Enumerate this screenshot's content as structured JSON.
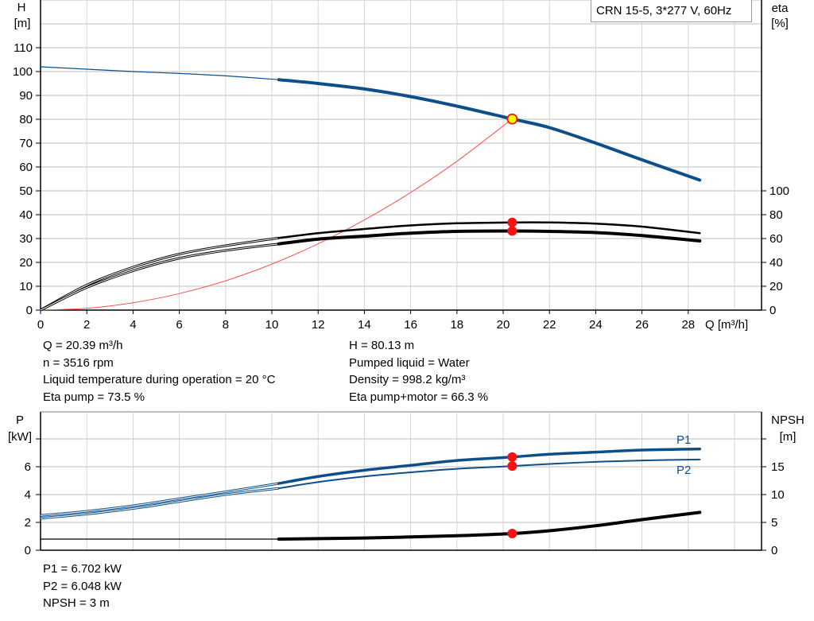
{
  "chart_data": [
    {
      "type": "line",
      "title": "CRN 15-5, 3*277 V, 60Hz",
      "xlabel": "Q [m³/h]",
      "ylabel_left": [
        "H",
        "[m]"
      ],
      "ylabel_right": [
        "eta",
        "[%]"
      ],
      "xlim": [
        0,
        31.2
      ],
      "ylim_left": [
        0,
        130
      ],
      "ylim_right": [
        0,
        260
      ],
      "x_ticks": [
        0,
        2,
        4,
        6,
        8,
        10,
        12,
        14,
        16,
        18,
        20,
        22,
        24,
        26,
        28
      ],
      "y_ticks_left": [
        0,
        10,
        20,
        30,
        40,
        50,
        60,
        70,
        80,
        90,
        100,
        110
      ],
      "y_ticks_right": [
        0,
        20,
        40,
        60,
        80,
        100
      ],
      "grid": true,
      "thick_from_q": 10.3,
      "series": [
        {
          "key": "H",
          "axis": "left",
          "color": "#0d4f8b",
          "x": [
            0,
            2,
            4,
            6,
            8,
            10.3,
            12,
            14,
            16,
            18,
            20.39,
            22,
            24,
            26,
            28.5
          ],
          "y": [
            102,
            101,
            100,
            99.2,
            98.2,
            96.6,
            95,
            92.7,
            89.5,
            85.5,
            80.13,
            76.5,
            70,
            63,
            54.5
          ]
        },
        {
          "key": "system",
          "axis": "left",
          "color": "#ff5050",
          "x": [
            0,
            2,
            4,
            6,
            8,
            10,
            12,
            14,
            16,
            18,
            20.39
          ],
          "y": [
            0,
            0.77,
            3.08,
            6.94,
            12.3,
            19.3,
            27.8,
            37.8,
            49.3,
            62.4,
            80.13
          ]
        },
        {
          "key": "eta_pump",
          "axis": "right",
          "color": "#000000",
          "x": [
            0,
            2,
            4,
            6,
            8,
            10.3,
            12,
            14,
            16,
            18,
            20.39,
            22,
            24,
            26,
            28.5
          ],
          "y": [
            0,
            21,
            36,
            47,
            54,
            60.5,
            64.5,
            68,
            71,
            72.8,
            73.5,
            73.5,
            72.5,
            70,
            64.5
          ]
        },
        {
          "key": "eta_pump_motor",
          "axis": "right",
          "color": "#000000",
          "x": [
            0,
            2,
            4,
            6,
            8,
            10.3,
            12,
            14,
            16,
            18,
            20.39,
            22,
            24,
            26,
            28.5
          ],
          "y": [
            0,
            19,
            33,
            43.5,
            50,
            55.5,
            59.5,
            62,
            64.5,
            66,
            66.3,
            66,
            65,
            62.5,
            58
          ]
        }
      ],
      "operating_point": {
        "q": 20.39,
        "h": 80.13,
        "eta_pump": 73.5,
        "eta_pump_motor": 66.3
      }
    },
    {
      "type": "line",
      "ylabel_left": [
        "P",
        "[kW]"
      ],
      "ylabel_right": [
        "NPSH",
        "[m]"
      ],
      "xlim": [
        0,
        31.2
      ],
      "ylim_left": [
        0,
        9.9
      ],
      "ylim_right": [
        0,
        24.8
      ],
      "y_ticks_left": [
        0,
        2,
        4,
        6,
        8
      ],
      "y_tick_labels_left": [
        "0",
        "2",
        "4",
        "6",
        ""
      ],
      "y_ticks_right": [
        0,
        5,
        10,
        15,
        20
      ],
      "y_tick_labels_right": [
        "0",
        "5",
        "10",
        "15",
        ""
      ],
      "grid": true,
      "thick_from_q": 10.3,
      "series": [
        {
          "name": "P1",
          "key": "P1",
          "axis": "left",
          "color": "#0d4f8b",
          "x": [
            0,
            2,
            4,
            6,
            8,
            10.3,
            12,
            14,
            16,
            18,
            20.39,
            22,
            24,
            26,
            28.5
          ],
          "y": [
            2.5,
            2.8,
            3.2,
            3.7,
            4.2,
            4.8,
            5.3,
            5.75,
            6.1,
            6.45,
            6.702,
            6.9,
            7.05,
            7.2,
            7.28
          ]
        },
        {
          "name": "P2",
          "key": "P2",
          "axis": "left",
          "color": "#0d4f8b",
          "x": [
            0,
            2,
            4,
            6,
            8,
            10.3,
            12,
            14,
            16,
            18,
            20.39,
            22,
            24,
            26,
            28.5
          ],
          "y": [
            2.3,
            2.6,
            3.0,
            3.5,
            4.0,
            4.45,
            4.9,
            5.3,
            5.6,
            5.85,
            6.048,
            6.2,
            6.35,
            6.45,
            6.52
          ]
        },
        {
          "key": "NPSH",
          "axis": "right",
          "color": "#000000",
          "x": [
            0,
            9.8,
            10.3,
            14,
            18,
            20.39,
            22,
            24,
            26,
            28.5
          ],
          "y": [
            2,
            2,
            2,
            2.2,
            2.6,
            3.0,
            3.5,
            4.4,
            5.5,
            6.8
          ]
        }
      ],
      "operating_point": {
        "q": 20.39,
        "P1": 6.702,
        "P2": 6.048,
        "NPSH": 3
      }
    }
  ],
  "info_top_left": [
    "Q = 20.39 m³/h",
    "n = 3516 rpm",
    "Liquid temperature during operation = 20 °C",
    "Eta pump = 73.5 %"
  ],
  "info_top_right": [
    "H = 80.13 m",
    "Pumped liquid = Water",
    "Density = 998.2 kg/m³",
    "Eta pump+motor = 66.3 %"
  ],
  "info_bottom": [
    "P1 = 6.702 kW",
    "P2 = 6.048 kW",
    "NPSH = 3 m"
  ]
}
